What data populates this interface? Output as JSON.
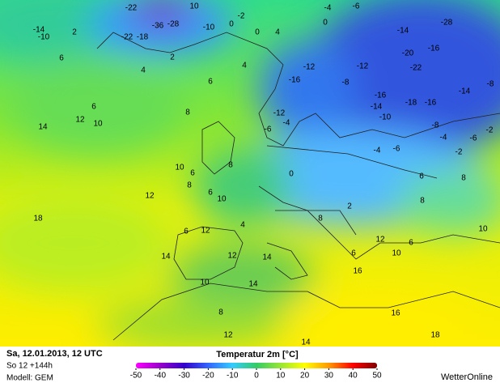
{
  "header": {
    "date": "Sa, 12.01.2013, 12 UTC",
    "forecast": "So 12 +144h",
    "model": "Modell: GEM",
    "brand": "WetterOnline"
  },
  "colorbar": {
    "title": "Temperatur 2m [°C]",
    "range": [
      -50,
      50
    ],
    "ticks": [
      -50,
      -40,
      -30,
      -20,
      -10,
      0,
      10,
      20,
      30,
      40,
      50
    ],
    "colors": [
      "#ff00ff",
      "#9900cc",
      "#3300cc",
      "#3366ff",
      "#33ccff",
      "#33cc66",
      "#99e633",
      "#ffff00",
      "#ff9900",
      "#ff0000",
      "#800000"
    ]
  },
  "map_labels": [
    -14,
    -10,
    2,
    -22,
    -36,
    -28,
    -22,
    -18,
    -10,
    0,
    10,
    -2,
    0,
    4,
    0,
    -4,
    -6,
    -14,
    -28,
    -20,
    -16,
    -22,
    -12,
    -8,
    -16,
    -14,
    -10,
    -18,
    -16,
    -14,
    -8,
    -8,
    -12,
    -16,
    6,
    4,
    6,
    4,
    2,
    6,
    12,
    10,
    14,
    8,
    10,
    6,
    8,
    10,
    12,
    18,
    -12,
    -4,
    -6,
    -4,
    -6,
    -2,
    -4,
    -6,
    -2,
    6,
    8,
    8,
    10,
    6,
    4,
    12,
    12,
    14,
    14,
    10,
    14,
    16,
    6,
    10,
    12,
    16,
    18,
    8,
    12,
    14,
    6,
    8,
    0,
    2,
    8,
    6
  ]
}
